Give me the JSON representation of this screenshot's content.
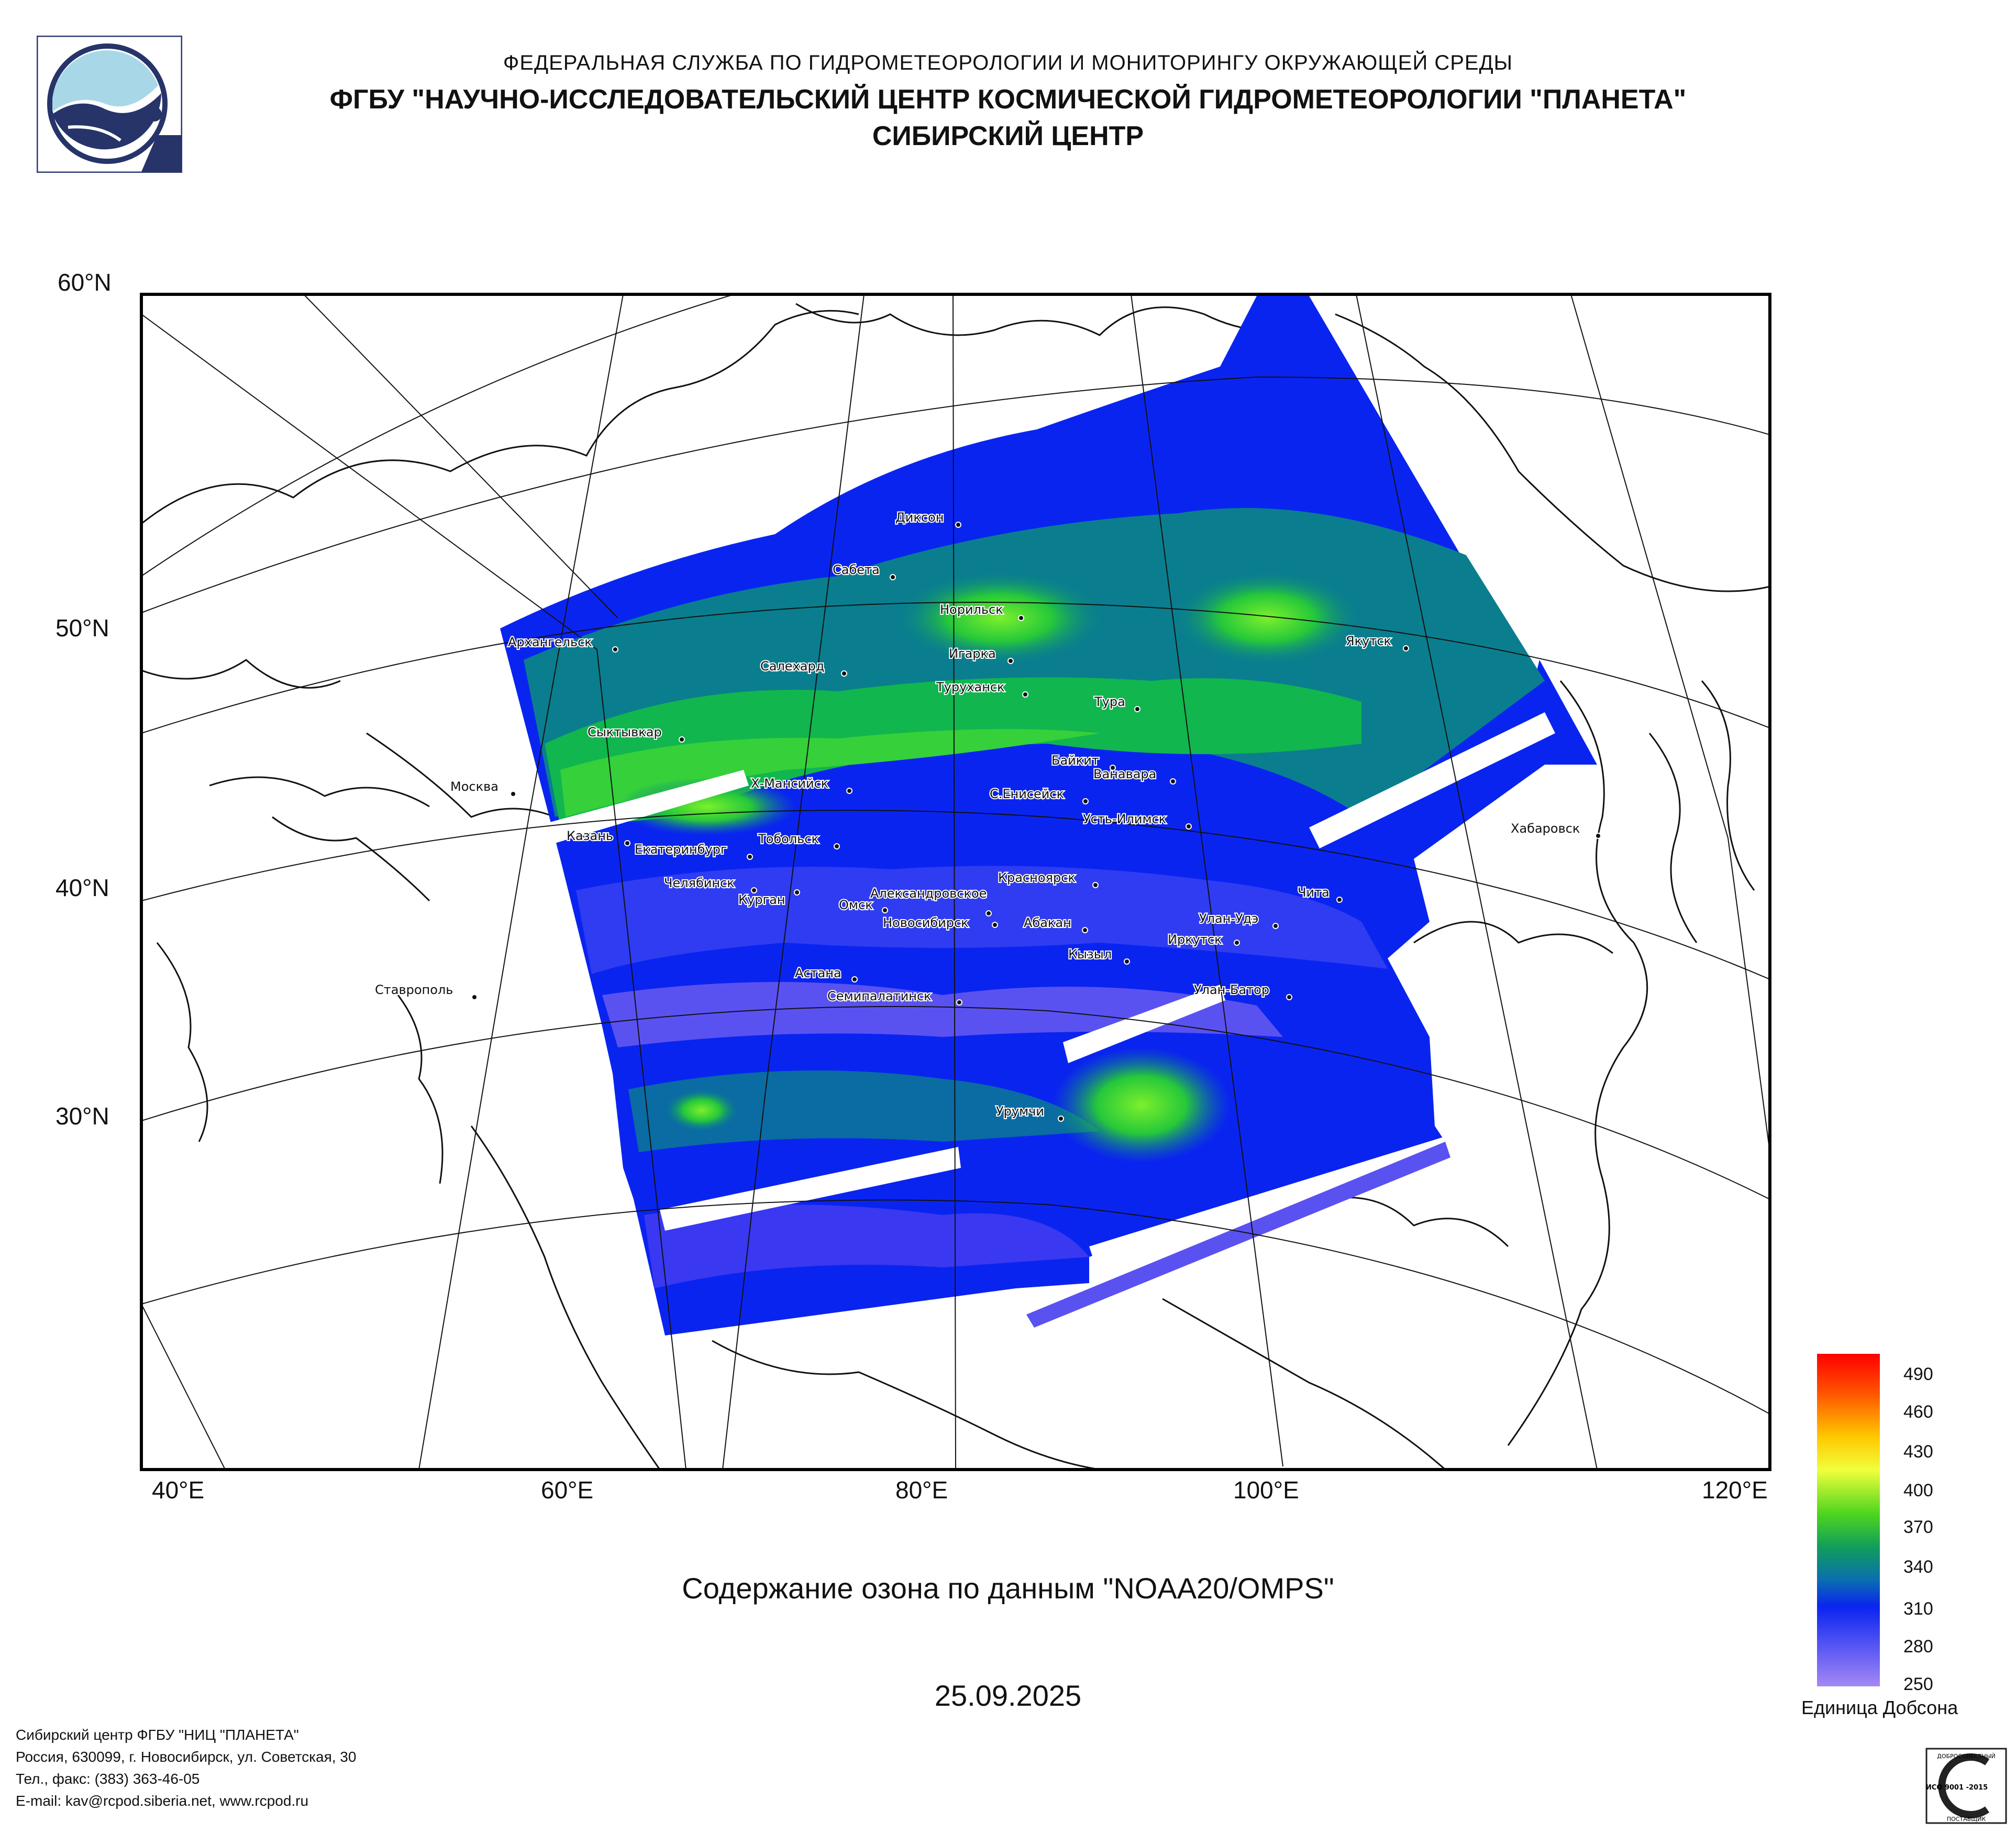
{
  "header": {
    "agency": "ФЕДЕРАЛЬНАЯ СЛУЖБА ПО ГИДРОМЕТЕОРОЛОГИИ И МОНИТОРИНГУ ОКРУЖАЮЩЕЙ СРЕДЫ",
    "institute": "ФГБУ \"НАУЧНО-ИССЛЕДОВАТЕЛЬСКИЙ ЦЕНТР КОСМИЧЕСКОЙ ГИДРОМЕТЕОРОЛОГИИ \"ПЛАНЕТА\"",
    "center": "СИБИРСКИЙ ЦЕНТР"
  },
  "map": {
    "lat_labels": [
      "60°N",
      "50°N",
      "40°N",
      "30°N"
    ],
    "lon_labels": [
      "40°E",
      "60°E",
      "80°E",
      "100°E",
      "120°E"
    ],
    "cities": [
      "Диксон",
      "Сабета",
      "Норильск",
      "Архангельск",
      "Игарка",
      "Салехард",
      "Туруханск",
      "Якутск",
      "Тура",
      "Сыктывкар",
      "Байкит",
      "Ванавара",
      "Х-Мансийск",
      "С.Енисейск",
      "Москва",
      "Усть-Илимск",
      "Казань",
      "Тобольск",
      "Екатеринбург",
      "Хабаровск",
      "Красноярск",
      "Челябинск",
      "Александровское",
      "Чита",
      "Курган",
      "Омск",
      "Новосибирск",
      "Абакан",
      "Улан-Удэ",
      "Иркутск",
      "Кызыл",
      "Астана",
      "Ставрополь",
      "Улан-Батор",
      "Семипалатинск",
      "Урумчи"
    ]
  },
  "caption": "Содержание озона по данным \"NOAA20/OMPS\"",
  "date": "25.09.2025",
  "legend": {
    "ticks": [
      "490",
      "460",
      "430",
      "400",
      "370",
      "340",
      "310",
      "280",
      "250"
    ],
    "unit": "Единица Добсона",
    "colors": [
      "#ff0000",
      "#ff6a00",
      "#ffd800",
      "#e8ff3a",
      "#5fe01e",
      "#11b64e",
      "#0a7e8e",
      "#0a24f0",
      "#9a7cf5"
    ]
  },
  "footer": {
    "line1": "Сибирский центр ФГБУ \"НИЦ \"ПЛАНЕТА\"",
    "line2": "Россия, 630099, г. Новосибирск, ул. Советская, 30",
    "line3": "Тел., факс: (383) 363-46-05",
    "line4": "E-mail: kav@rcpod.siberia.net, www.rcpod.ru"
  },
  "iso_badge": {
    "top": "ДОБРОСОВЕСТНЫЙ",
    "mark": "ИСО 9001 -2015",
    "bottom": "ПОСТАВЩИК"
  }
}
